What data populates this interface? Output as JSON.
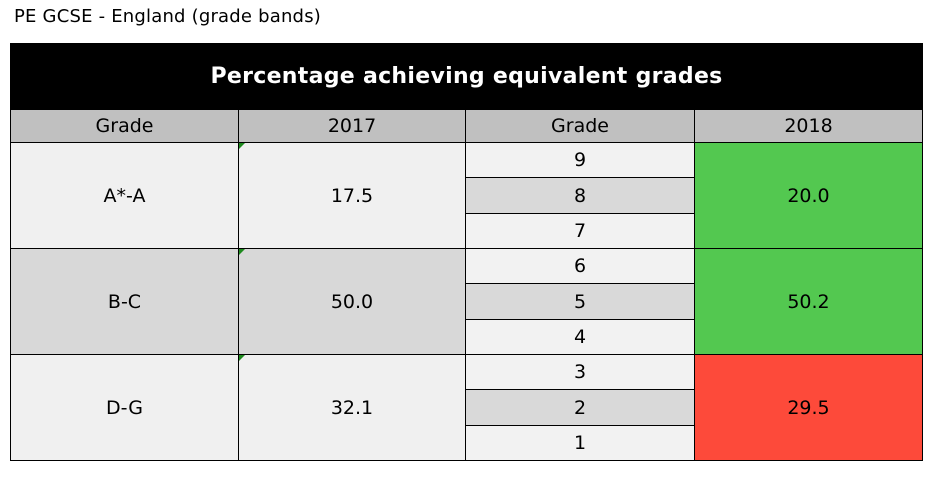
{
  "title": "PE GCSE - England (grade bands)",
  "chart_data": {
    "type": "table",
    "title": "Percentage achieving equivalent grades",
    "columns": [
      "Grade",
      "2017",
      "Grade",
      "2018"
    ],
    "rows": [
      {
        "band": "A*-A",
        "value_2017": "17.5",
        "grades": [
          "9",
          "8",
          "7"
        ],
        "value_2018": "20.0",
        "color_2018": "#53c850"
      },
      {
        "band": "B-C",
        "value_2017": "50.0",
        "grades": [
          "6",
          "5",
          "4"
        ],
        "value_2018": "50.2",
        "color_2018": "#53c850"
      },
      {
        "band": "D-G",
        "value_2017": "32.1",
        "grades": [
          "3",
          "2",
          "1"
        ],
        "value_2018": "29.5",
        "color_2018": "#fd4a3a"
      }
    ]
  }
}
